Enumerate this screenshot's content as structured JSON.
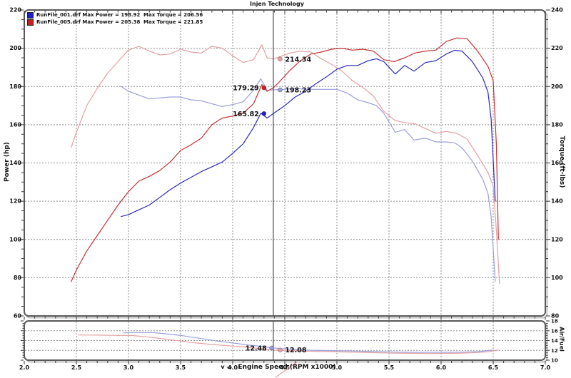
{
  "legend": {
    "runs": [
      {
        "color": "#2020c8",
        "power_text": "RunFile_001.drf Max Power = 198.92",
        "torque_text": "Max Torque = 206.56"
      },
      {
        "color": "#c82020",
        "power_text": "RunFile_005.drf Max Power = 205.38",
        "torque_text": "Max Torque = 221.85"
      }
    ]
  },
  "colors": {
    "grid": "#8f8f8f",
    "frame": "#5a5a5a",
    "frame_shadow": "#c2c2c2",
    "cursor": "#2b2b2b",
    "blue_power": "#2a2ab8",
    "blue_torque": "#9b9fdb",
    "red_power": "#c23434",
    "red_torque": "#e5a0a2",
    "callout": "#e08a8a"
  },
  "chart_data": [
    {
      "type": "line",
      "title": "Injen Technology",
      "xlabel": "Engine Speed (RPM x1000)",
      "xlabel_prefix": "v —",
      "x_range": [
        2.0,
        7.0
      ],
      "x_ticks": [
        "2.0",
        "2.5",
        "3.0",
        "3.5",
        "4.0",
        "4.5",
        "5.0",
        "5.5",
        "6.0",
        "6.5",
        "7.0"
      ],
      "grid": "dashed",
      "cursor_rpm": 4.39,
      "left_axis": {
        "label": "Power (hp)",
        "range": [
          60,
          220
        ],
        "ticks": [
          220,
          200,
          180,
          160,
          140,
          120,
          100,
          80,
          60
        ]
      },
      "right_axis": {
        "label": "Torque (ft-lbs)",
        "range": [
          80,
          240
        ],
        "ticks": [
          240,
          220,
          200,
          180,
          160,
          140,
          120,
          100,
          80
        ]
      },
      "series": [
        {
          "name": "RunFile_001.drf Torque",
          "axis": "torque",
          "color": "#9b9fdb",
          "points": [
            [
              2.93,
              200
            ],
            [
              3.0,
              197.5
            ],
            [
              3.1,
              195.5
            ],
            [
              3.2,
              193.5
            ],
            [
              3.3,
              194
            ],
            [
              3.4,
              194.5
            ],
            [
              3.5,
              194.5
            ],
            [
              3.6,
              193
            ],
            [
              3.7,
              192.5
            ],
            [
              3.8,
              191
            ],
            [
              3.9,
              189.5
            ],
            [
              4.0,
              190.5
            ],
            [
              4.1,
              192
            ],
            [
              4.2,
              198
            ],
            [
              4.27,
              204
            ],
            [
              4.33,
              198
            ],
            [
              4.39,
              198.23
            ],
            [
              4.5,
              198.5
            ],
            [
              4.6,
              199
            ],
            [
              4.7,
              198.5
            ],
            [
              4.8,
              198.5
            ],
            [
              4.9,
              198.5
            ],
            [
              5.0,
              198.5
            ],
            [
              5.1,
              196.5
            ],
            [
              5.2,
              193
            ],
            [
              5.3,
              191.5
            ],
            [
              5.38,
              190
            ],
            [
              5.45,
              186
            ],
            [
              5.56,
              176
            ],
            [
              5.65,
              177.5
            ],
            [
              5.74,
              172
            ],
            [
              5.85,
              173
            ],
            [
              5.95,
              171
            ],
            [
              6.05,
              171
            ],
            [
              6.13,
              170.5
            ],
            [
              6.2,
              168
            ],
            [
              6.3,
              161
            ],
            [
              6.4,
              151.5
            ],
            [
              6.45,
              144
            ],
            [
              6.48,
              132
            ],
            [
              6.52,
              98
            ]
          ]
        },
        {
          "name": "RunFile_005.drf Torque",
          "axis": "torque",
          "color": "#e5a0a2",
          "points": [
            [
              2.45,
              168
            ],
            [
              2.5,
              176
            ],
            [
              2.6,
              190
            ],
            [
              2.7,
              199
            ],
            [
              2.8,
              207
            ],
            [
              2.9,
              213
            ],
            [
              3.0,
              219
            ],
            [
              3.1,
              221
            ],
            [
              3.2,
              218.5
            ],
            [
              3.3,
              216.5
            ],
            [
              3.4,
              217
            ],
            [
              3.5,
              219.5
            ],
            [
              3.6,
              218
            ],
            [
              3.7,
              217.5
            ],
            [
              3.8,
              221
            ],
            [
              3.9,
              220
            ],
            [
              4.0,
              216
            ],
            [
              4.1,
              212.5
            ],
            [
              4.2,
              214
            ],
            [
              4.28,
              221.85
            ],
            [
              4.33,
              215
            ],
            [
              4.39,
              214.34
            ],
            [
              4.45,
              215.5
            ],
            [
              4.55,
              217.5
            ],
            [
              4.65,
              218.5
            ],
            [
              4.75,
              218
            ],
            [
              4.85,
              214.5
            ],
            [
              4.95,
              211.5
            ],
            [
              5.05,
              208
            ],
            [
              5.15,
              203
            ],
            [
              5.25,
              199.5
            ],
            [
              5.35,
              195
            ],
            [
              5.45,
              187
            ],
            [
              5.55,
              182.5
            ],
            [
              5.65,
              181
            ],
            [
              5.75,
              180.5
            ],
            [
              5.85,
              178
            ],
            [
              5.95,
              175.5
            ],
            [
              6.05,
              176.5
            ],
            [
              6.15,
              175.5
            ],
            [
              6.25,
              172.5
            ],
            [
              6.35,
              164
            ],
            [
              6.45,
              155
            ],
            [
              6.5,
              148
            ],
            [
              6.53,
              125
            ],
            [
              6.56,
              97
            ]
          ]
        },
        {
          "name": "RunFile_001.drf Power",
          "axis": "power",
          "color": "#2a2ab8",
          "points": [
            [
              2.93,
              112
            ],
            [
              3.0,
              113
            ],
            [
              3.1,
              115.5
            ],
            [
              3.2,
              118
            ],
            [
              3.3,
              122
            ],
            [
              3.4,
              126
            ],
            [
              3.5,
              129.5
            ],
            [
              3.6,
              132.5
            ],
            [
              3.7,
              135.5
            ],
            [
              3.8,
              138
            ],
            [
              3.9,
              140.5
            ],
            [
              4.0,
              145
            ],
            [
              4.1,
              150
            ],
            [
              4.2,
              158.5
            ],
            [
              4.27,
              166
            ],
            [
              4.33,
              163.5
            ],
            [
              4.39,
              165.82
            ],
            [
              4.5,
              170
            ],
            [
              4.6,
              174.5
            ],
            [
              4.7,
              177.5
            ],
            [
              4.8,
              181.5
            ],
            [
              4.9,
              185
            ],
            [
              5.0,
              189
            ],
            [
              5.1,
              191
            ],
            [
              5.2,
              191
            ],
            [
              5.3,
              193.5
            ],
            [
              5.38,
              194.5
            ],
            [
              5.45,
              193
            ],
            [
              5.56,
              186.5
            ],
            [
              5.65,
              191
            ],
            [
              5.74,
              188
            ],
            [
              5.85,
              192.5
            ],
            [
              5.95,
              193.5
            ],
            [
              6.05,
              197
            ],
            [
              6.13,
              198.92
            ],
            [
              6.2,
              198.5
            ],
            [
              6.3,
              193
            ],
            [
              6.4,
              184.5
            ],
            [
              6.45,
              177
            ],
            [
              6.48,
              163
            ],
            [
              6.52,
              120
            ]
          ]
        },
        {
          "name": "RunFile_005.drf Power",
          "axis": "power",
          "color": "#c23434",
          "points": [
            [
              2.45,
              78
            ],
            [
              2.5,
              84
            ],
            [
              2.6,
              94
            ],
            [
              2.7,
              102
            ],
            [
              2.8,
              110
            ],
            [
              2.9,
              118
            ],
            [
              3.0,
              125
            ],
            [
              3.1,
              130.5
            ],
            [
              3.2,
              133
            ],
            [
              3.3,
              136
            ],
            [
              3.4,
              140.5
            ],
            [
              3.5,
              146.5
            ],
            [
              3.6,
              149.5
            ],
            [
              3.7,
              153
            ],
            [
              3.8,
              160
            ],
            [
              3.9,
              163.5
            ],
            [
              4.0,
              164.5
            ],
            [
              4.1,
              166
            ],
            [
              4.2,
              171
            ],
            [
              4.28,
              181
            ],
            [
              4.33,
              177.5
            ],
            [
              4.39,
              179.29
            ],
            [
              4.45,
              182.5
            ],
            [
              4.55,
              188.5
            ],
            [
              4.65,
              193.5
            ],
            [
              4.75,
              197
            ],
            [
              4.85,
              198
            ],
            [
              4.95,
              199.5
            ],
            [
              5.05,
              200
            ],
            [
              5.15,
              199
            ],
            [
              5.25,
              199.5
            ],
            [
              5.35,
              198.5
            ],
            [
              5.45,
              194
            ],
            [
              5.55,
              193
            ],
            [
              5.65,
              195
            ],
            [
              5.75,
              197.5
            ],
            [
              5.85,
              198.5
            ],
            [
              5.95,
              199
            ],
            [
              6.05,
              203.5
            ],
            [
              6.15,
              205.38
            ],
            [
              6.25,
              205
            ],
            [
              6.35,
              198.5
            ],
            [
              6.45,
              190.5
            ],
            [
              6.5,
              183
            ],
            [
              6.53,
              150
            ],
            [
              6.55,
              100
            ]
          ]
        }
      ],
      "readouts": [
        {
          "text": "214.34",
          "axis": "torque",
          "value": 214.34,
          "rpm": 4.455,
          "side": "right",
          "color": "#e5a0a2"
        },
        {
          "text": "198.23",
          "axis": "torque",
          "value": 198.23,
          "rpm": 4.455,
          "side": "right",
          "color": "#9b9fdb"
        },
        {
          "text": "179.29",
          "axis": "power",
          "value": 179.29,
          "rpm": 4.3,
          "side": "left",
          "color": "#d42020"
        },
        {
          "text": "165.82",
          "axis": "power",
          "value": 165.82,
          "rpm": 4.3,
          "side": "left",
          "color": "#2020d4"
        }
      ]
    },
    {
      "type": "line",
      "x_range": [
        2.0,
        7.0
      ],
      "grid": "dashed",
      "cursor_rpm": 4.39,
      "right_axis": {
        "label": "Air/Fuel",
        "range": [
          10,
          18
        ],
        "ticks": [
          18,
          16,
          14,
          12,
          10
        ]
      },
      "series": [
        {
          "name": "RunFile_001.drf Air/Fuel",
          "axis": "airfuel",
          "color": "#9b9fdb",
          "points": [
            [
              2.95,
              15.55
            ],
            [
              3.1,
              15.65
            ],
            [
              3.25,
              15.6
            ],
            [
              3.4,
              15.3
            ],
            [
              3.55,
              14.9
            ],
            [
              3.7,
              14.4
            ],
            [
              3.85,
              13.9
            ],
            [
              4.0,
              13.5
            ],
            [
              4.15,
              13.1
            ],
            [
              4.3,
              12.75
            ],
            [
              4.39,
              12.48
            ],
            [
              4.5,
              12.3
            ],
            [
              4.65,
              12.1
            ],
            [
              4.8,
              12.0
            ],
            [
              5.0,
              11.9
            ],
            [
              5.2,
              11.85
            ],
            [
              5.4,
              11.75
            ],
            [
              5.6,
              11.65
            ],
            [
              5.8,
              11.6
            ],
            [
              6.0,
              11.6
            ],
            [
              6.2,
              11.65
            ],
            [
              6.35,
              11.75
            ],
            [
              6.5,
              12.05
            ]
          ]
        },
        {
          "name": "RunFile_005.drf Air/Fuel",
          "axis": "airfuel",
          "color": "#e5a0a2",
          "points": [
            [
              2.52,
              15.15
            ],
            [
              2.7,
              15.1
            ],
            [
              2.9,
              15.05
            ],
            [
              3.05,
              15.0
            ],
            [
              3.2,
              14.7
            ],
            [
              3.35,
              14.3
            ],
            [
              3.5,
              13.9
            ],
            [
              3.65,
              13.5
            ],
            [
              3.8,
              13.2
            ],
            [
              3.95,
              12.95
            ],
            [
              4.1,
              12.7
            ],
            [
              4.25,
              12.4
            ],
            [
              4.39,
              12.08
            ],
            [
              4.55,
              11.95
            ],
            [
              4.7,
              11.85
            ],
            [
              4.9,
              11.75
            ],
            [
              5.1,
              11.65
            ],
            [
              5.3,
              11.55
            ],
            [
              5.5,
              11.45
            ],
            [
              5.7,
              11.4
            ],
            [
              5.9,
              11.35
            ],
            [
              6.1,
              11.4
            ],
            [
              6.3,
              11.5
            ],
            [
              6.45,
              11.7
            ],
            [
              6.55,
              12.1
            ]
          ]
        }
      ],
      "readouts": [
        {
          "text": "12.48",
          "axis": "airfuel",
          "value": 12.48,
          "rpm": 4.375,
          "side": "left",
          "color": "#9b9fdb"
        },
        {
          "text": "12.08",
          "axis": "airfuel",
          "value": 12.08,
          "rpm": 4.455,
          "side": "right",
          "color": "#e5a0a2"
        }
      ]
    }
  ]
}
